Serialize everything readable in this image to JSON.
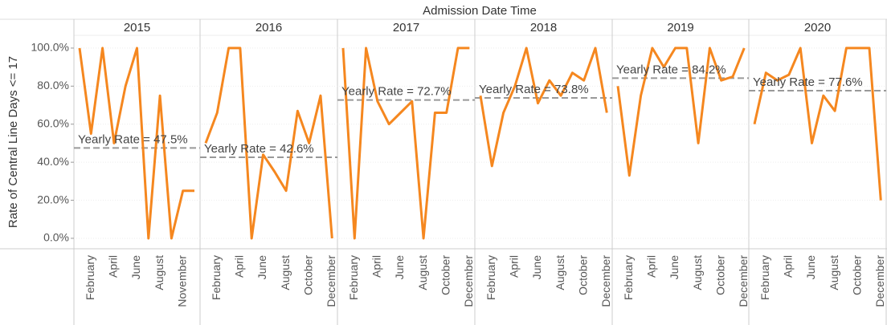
{
  "chart_data": {
    "type": "line",
    "title": "Admission Date Time",
    "y_label": "Rate of Central Line Days <= 17",
    "color": "#f5871f",
    "ylim": [
      -5.5,
      106.3
    ],
    "yticks": [
      {
        "value": 0,
        "label": "0.0%"
      },
      {
        "value": 20,
        "label": "20.0%"
      },
      {
        "value": 40,
        "label": "40.0%"
      },
      {
        "value": 60,
        "label": "60.0%"
      },
      {
        "value": 80,
        "label": "80.0%"
      },
      {
        "value": 100,
        "label": "100.0%"
      }
    ],
    "grid": true,
    "panels": [
      {
        "title": "2015",
        "categories": [
          null,
          "February",
          null,
          "April",
          null,
          "June",
          null,
          "August",
          null,
          "November",
          null
        ],
        "values": [
          100,
          55,
          100,
          50,
          80,
          100,
          0,
          75,
          0,
          25,
          25
        ],
        "reference_line": {
          "value": 47.5,
          "label": "Yearly Rate = 47.5%"
        }
      },
      {
        "title": "2016",
        "categories": [
          null,
          "February",
          null,
          "April",
          null,
          "June",
          null,
          "August",
          null,
          "October",
          null,
          "December"
        ],
        "values": [
          50,
          66,
          100,
          100,
          0,
          44,
          35,
          25,
          67,
          50,
          75,
          0
        ],
        "reference_line": {
          "value": 42.6,
          "label": "Yearly Rate = 42.6%"
        }
      },
      {
        "title": "2017",
        "categories": [
          null,
          "February",
          null,
          "April",
          null,
          "June",
          null,
          "August",
          null,
          "October",
          null,
          "December"
        ],
        "values": [
          100,
          0,
          100,
          72,
          60,
          66,
          72,
          0,
          66,
          66,
          100,
          100
        ],
        "reference_line": {
          "value": 72.7,
          "label": "Yearly Rate = 72.7%"
        }
      },
      {
        "title": "2018",
        "categories": [
          null,
          "February",
          null,
          "April",
          null,
          "June",
          null,
          "August",
          null,
          "October",
          null,
          "December"
        ],
        "values": [
          75,
          38,
          66,
          80,
          100,
          71,
          83,
          75,
          87,
          83,
          100,
          66
        ],
        "reference_line": {
          "value": 73.8,
          "label": "Yearly Rate = 73.8%"
        }
      },
      {
        "title": "2019",
        "categories": [
          null,
          "February",
          null,
          "April",
          null,
          "June",
          null,
          "August",
          null,
          "October",
          null,
          "December"
        ],
        "values": [
          80,
          33,
          75,
          100,
          90,
          100,
          100,
          50,
          100,
          83,
          85,
          100
        ],
        "reference_line": {
          "value": 84.2,
          "label": "Yearly Rate = 84.2%"
        }
      },
      {
        "title": "2020",
        "categories": [
          null,
          "February",
          null,
          "April",
          null,
          "June",
          null,
          "August",
          null,
          "October",
          null,
          "December"
        ],
        "values": [
          60,
          87,
          83,
          86,
          100,
          50,
          75,
          67,
          100,
          100,
          100,
          20
        ],
        "reference_line": {
          "value": 77.6,
          "label": "Yearly Rate = 77.6%"
        }
      }
    ]
  }
}
